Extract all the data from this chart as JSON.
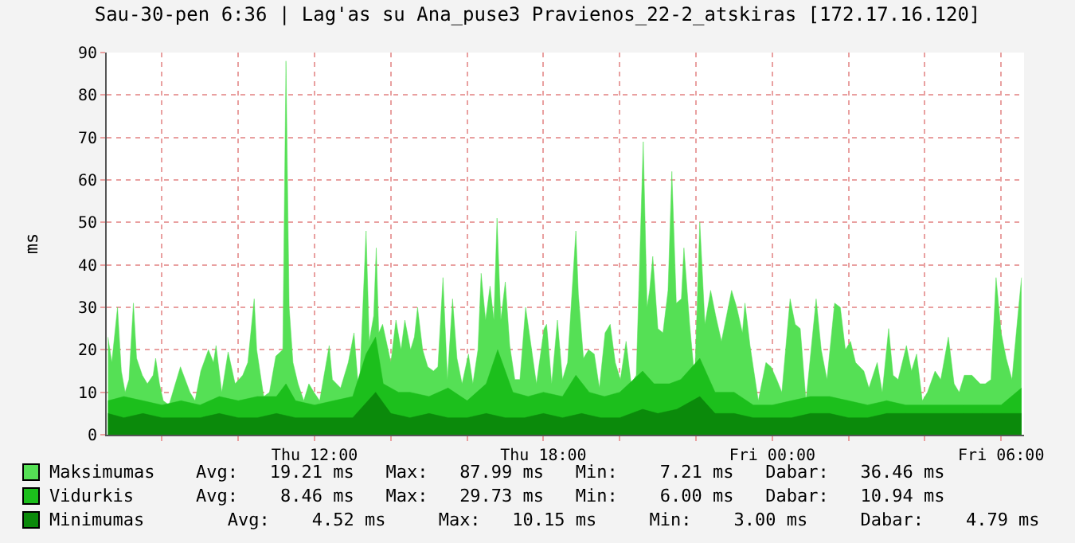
{
  "chart_data": {
    "type": "area",
    "title": "Sau-30-pen 6:36 | Lag'as su Ana_puse3 Pravienos_22-2_atskiras [172.17.16.120]",
    "ylabel": "ms",
    "xlim": [
      "--01-29T06:33",
      "--01-30T06:36"
    ],
    "xticks": [
      {
        "value": "--01-29T08:00",
        "label": null
      },
      {
        "value": "--01-29T10:00",
        "label": null
      },
      {
        "value": "--01-29T12:00",
        "label": "Thu 12:00"
      },
      {
        "value": "--01-29T14:00",
        "label": null
      },
      {
        "value": "--01-29T16:00",
        "label": null
      },
      {
        "value": "--01-29T18:00",
        "label": "Thu 18:00"
      },
      {
        "value": "--01-29T20:00",
        "label": null
      },
      {
        "value": "--01-29T22:00",
        "label": null
      },
      {
        "value": "--01-30T00:00",
        "label": "Fri 00:00"
      },
      {
        "value": "--01-30T02:00",
        "label": null
      },
      {
        "value": "--01-30T04:00",
        "label": null
      },
      {
        "value": "--01-30T06:00",
        "label": "Fri 06:00"
      }
    ],
    "ylim": [
      0,
      90
    ],
    "yticks": [
      0,
      10,
      20,
      30,
      40,
      50,
      60,
      70,
      80,
      90
    ],
    "grid": true,
    "legend": "bottom",
    "annotations": [
      "Avg:   19.21 ms   Max:   87.99 ms   Min:    7.21 ms   Dabar:   36.46 ms",
      "Avg:    8.46 ms   Max:   29.73 ms   Min:    6.00 ms   Dabar:   10.94 ms",
      "   Avg:    4.52 ms     Max:   10.15 ms     Min:    3.00 ms     Dabar:    4.79 ms"
    ],
    "series": [
      {
        "name": "Maksimumas",
        "color": "#55e055",
        "x": [
          "--01-29T06:35",
          "--01-29T06:41",
          "--01-29T06:50",
          "--01-29T06:56",
          "--01-29T07:02",
          "--01-29T07:08",
          "--01-29T07:15",
          "--01-29T07:20",
          "--01-29T07:29",
          "--01-29T07:37",
          "--01-29T07:46",
          "--01-29T07:50",
          "--01-29T07:56",
          "--01-29T08:02",
          "--01-29T08:11",
          "--01-29T08:19",
          "--01-29T08:29",
          "--01-29T08:44",
          "--01-29T08:52",
          "--01-29T09:01",
          "--01-29T09:13",
          "--01-29T09:21",
          "--01-29T09:25",
          "--01-29T09:34",
          "--01-29T09:44",
          "--01-29T09:55",
          "--01-29T10:07",
          "--01-29T10:15",
          "--01-29T10:25",
          "--01-29T10:29",
          "--01-29T10:40",
          "--01-29T10:49",
          "--01-29T10:59",
          "--01-29T11:10",
          "--01-29T11:15",
          "--01-29T11:20",
          "--01-29T11:26",
          "--01-29T11:34",
          "--01-29T11:43",
          "--01-29T11:51",
          "--01-29T11:59",
          "--01-29T12:08",
          "--01-29T12:23",
          "--01-29T12:28",
          "--01-29T12:41",
          "--01-29T12:53",
          "--01-29T13:02",
          "--01-29T13:10",
          "--01-29T13:21",
          "--01-29T13:26",
          "--01-29T13:33",
          "--01-29T13:37",
          "--01-29T13:41",
          "--01-29T13:47",
          "--01-29T14:00",
          "--01-29T14:08",
          "--01-29T14:16",
          "--01-29T14:22",
          "--01-29T14:31",
          "--01-29T14:37",
          "--01-29T14:42",
          "--01-29T14:50",
          "--01-29T14:58",
          "--01-29T15:07",
          "--01-29T15:14",
          "--01-29T15:22",
          "--01-29T15:29",
          "--01-29T15:37",
          "--01-29T15:44",
          "--01-29T15:52",
          "--01-29T16:02",
          "--01-29T16:09",
          "--01-29T16:17",
          "--01-29T16:22",
          "--01-29T16:29",
          "--01-29T16:36",
          "--01-29T16:42",
          "--01-29T16:47",
          "--01-29T16:53",
          "--01-29T17:00",
          "--01-29T17:07",
          "--01-29T17:15",
          "--01-29T17:23",
          "--01-29T17:32",
          "--01-29T17:49",
          "--01-29T18:01",
          "--01-29T18:05",
          "--01-29T18:13",
          "--01-29T18:22",
          "--01-29T18:30",
          "--01-29T18:38",
          "--01-29T18:51",
          "--01-29T18:55",
          "--01-29T19:03",
          "--01-29T19:11",
          "--01-29T19:20",
          "--01-29T19:28",
          "--01-29T19:37",
          "--01-29T19:45",
          "--01-29T19:53",
          "--01-29T20:01",
          "--01-29T20:10",
          "--01-29T20:18",
          "--01-29T20:26",
          "--01-29T20:37",
          "--01-29T20:43",
          "--01-29T20:47",
          "--01-29T20:52",
          "--01-29T21:00",
          "--01-29T21:08",
          "--01-29T21:16",
          "--01-29T21:22",
          "--01-29T21:29",
          "--01-29T21:37",
          "--01-29T21:41",
          "--01-29T21:50",
          "--01-29T21:58",
          "--01-29T22:06",
          "--01-29T22:14",
          "--01-29T22:23",
          "--01-29T22:31",
          "--01-29T22:40",
          "--01-29T22:48",
          "--01-29T22:56",
          "--01-29T23:04",
          "--01-29T23:13",
          "--01-29T23:17",
          "--01-29T23:25",
          "--01-29T23:38",
          "--01-29T23:50",
          "--01-29T23:58",
          "--01-30T00:07",
          "--01-30T00:15",
          "--01-30T00:28",
          "--01-30T00:36",
          "--01-30T00:44",
          "--01-30T00:53",
          "--01-30T01:01",
          "--01-30T01:09",
          "--01-30T01:17",
          "--01-30T01:26",
          "--01-30T01:38",
          "--01-30T01:47",
          "--01-30T01:55",
          "--01-30T02:03",
          "--01-30T02:11",
          "--01-30T02:24",
          "--01-30T02:32",
          "--01-30T02:45",
          "--01-30T02:53",
          "--01-30T03:03",
          "--01-30T03:10",
          "--01-30T03:18",
          "--01-30T03:31",
          "--01-30T03:39",
          "--01-30T03:47",
          "--01-30T03:56",
          "--01-30T04:04",
          "--01-30T04:16",
          "--01-30T04:25",
          "--01-30T04:37",
          "--01-30T04:46",
          "--01-30T04:54",
          "--01-30T05:02",
          "--01-30T05:14",
          "--01-30T05:27",
          "--01-30T05:35",
          "--01-30T05:44",
          "--01-30T05:52",
          "--01-30T06:00",
          "--01-30T06:08",
          "--01-30T06:17",
          "--01-30T06:25",
          "--01-30T06:32"
        ],
        "values": [
          23,
          17,
          30,
          15,
          10,
          13,
          31,
          18,
          14,
          12,
          14,
          18,
          12,
          8,
          7,
          11,
          16,
          10,
          8,
          15,
          20,
          17,
          21,
          10,
          19.5,
          12,
          14,
          17,
          32,
          20,
          9,
          10,
          18.5,
          20,
          88,
          30,
          17,
          12,
          8,
          12,
          10,
          8,
          21,
          13,
          11,
          17,
          24,
          9,
          48,
          22,
          28,
          44,
          24,
          26,
          17,
          27,
          20,
          27,
          20,
          23,
          30,
          20,
          16,
          15,
          16,
          37,
          13,
          32,
          18,
          12,
          19,
          12,
          20,
          38,
          27,
          35,
          27,
          51,
          27,
          36,
          21,
          13,
          13,
          30,
          12,
          25,
          26,
          12,
          27,
          13,
          17,
          48,
          33,
          18,
          20,
          19,
          11,
          24,
          26,
          17,
          13,
          22,
          12,
          14,
          69,
          30,
          34,
          42,
          25,
          24,
          34,
          62,
          31,
          32,
          44,
          26,
          13,
          50,
          26,
          34,
          28,
          22,
          28,
          34,
          30,
          24,
          31,
          21,
          8,
          17,
          16,
          13,
          10,
          32,
          26,
          25,
          8,
          20,
          32,
          20,
          13,
          31,
          30,
          20,
          22,
          17,
          15,
          11,
          17,
          10,
          25,
          14,
          13,
          21,
          15,
          19,
          8,
          10,
          15,
          13,
          23,
          12,
          10,
          14,
          14,
          12,
          12,
          13,
          37,
          24,
          18,
          13,
          26,
          37
        ]
      },
      {
        "name": "Vidurkis",
        "color": "#1cbf1c",
        "x": [
          "--01-29T06:35",
          "--01-29T07:00",
          "--01-29T07:30",
          "--01-29T08:00",
          "--01-29T08:30",
          "--01-29T09:00",
          "--01-29T09:30",
          "--01-29T10:00",
          "--01-29T10:30",
          "--01-29T11:00",
          "--01-29T11:15",
          "--01-29T11:30",
          "--01-29T12:00",
          "--01-29T12:30",
          "--01-29T13:00",
          "--01-29T13:21",
          "--01-29T13:36",
          "--01-29T13:48",
          "--01-29T14:12",
          "--01-29T14:30",
          "--01-29T15:00",
          "--01-29T15:30",
          "--01-29T16:00",
          "--01-29T16:30",
          "--01-29T16:48",
          "--01-29T17:12",
          "--01-29T17:36",
          "--01-29T18:00",
          "--01-29T18:30",
          "--01-29T18:51",
          "--01-29T19:12",
          "--01-29T19:36",
          "--01-29T20:00",
          "--01-29T20:36",
          "--01-29T20:54",
          "--01-29T21:18",
          "--01-29T21:36",
          "--01-29T22:06",
          "--01-29T22:30",
          "--01-29T23:00",
          "--01-29T23:30",
          "--01-30T00:00",
          "--01-30T00:30",
          "--01-30T01:00",
          "--01-30T01:30",
          "--01-30T02:00",
          "--01-30T02:30",
          "--01-30T03:00",
          "--01-30T03:30",
          "--01-30T04:00",
          "--01-30T04:30",
          "--01-30T05:00",
          "--01-30T05:30",
          "--01-30T06:00",
          "--01-30T06:32"
        ],
        "values": [
          8,
          9,
          8,
          7,
          8,
          7,
          9,
          8,
          9,
          9,
          12,
          8,
          7,
          8,
          9,
          19,
          23,
          12,
          10,
          10,
          9,
          11,
          8,
          12,
          20,
          10,
          9,
          10,
          9,
          14,
          10,
          9,
          10,
          15,
          12,
          12,
          13,
          18,
          10,
          10,
          7,
          7,
          8,
          9,
          9,
          8,
          7,
          8,
          7,
          7,
          7,
          7,
          7,
          7,
          11
        ]
      },
      {
        "name": "Minimumas",
        "color": "#0b8a0b",
        "x": [
          "--01-29T06:35",
          "--01-29T07:00",
          "--01-29T07:30",
          "--01-29T08:00",
          "--01-29T08:30",
          "--01-29T09:00",
          "--01-29T09:30",
          "--01-29T10:00",
          "--01-29T10:30",
          "--01-29T11:00",
          "--01-29T11:30",
          "--01-29T12:00",
          "--01-29T12:30",
          "--01-29T13:00",
          "--01-29T13:36",
          "--01-29T14:00",
          "--01-29T14:30",
          "--01-29T15:00",
          "--01-29T15:30",
          "--01-29T16:00",
          "--01-29T16:30",
          "--01-29T17:00",
          "--01-29T17:30",
          "--01-29T18:00",
          "--01-29T18:30",
          "--01-29T19:00",
          "--01-29T19:30",
          "--01-29T20:00",
          "--01-29T20:36",
          "--01-29T21:00",
          "--01-29T21:30",
          "--01-29T22:06",
          "--01-29T22:30",
          "--01-29T23:00",
          "--01-29T23:30",
          "--01-30T00:00",
          "--01-30T00:30",
          "--01-30T01:00",
          "--01-30T01:30",
          "--01-30T02:00",
          "--01-30T02:30",
          "--01-30T03:00",
          "--01-30T03:30",
          "--01-30T04:00",
          "--01-30T04:30",
          "--01-30T05:00",
          "--01-30T05:30",
          "--01-30T06:00",
          "--01-30T06:32"
        ],
        "values": [
          5,
          4,
          5,
          4,
          4,
          4,
          5,
          4,
          4,
          5,
          4,
          4,
          4,
          4,
          10,
          5,
          4,
          5,
          4,
          4,
          5,
          4,
          4,
          5,
          4,
          5,
          4,
          4,
          6,
          5,
          6,
          9,
          5,
          5,
          4,
          4,
          4,
          5,
          5,
          4,
          4,
          5,
          5,
          5,
          5,
          5,
          5,
          5,
          5
        ]
      }
    ]
  }
}
